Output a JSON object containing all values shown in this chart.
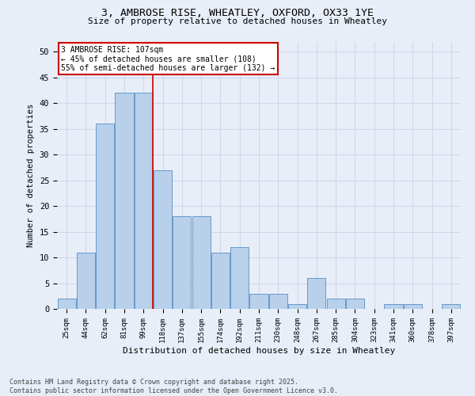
{
  "title_line1": "3, AMBROSE RISE, WHEATLEY, OXFORD, OX33 1YE",
  "title_line2": "Size of property relative to detached houses in Wheatley",
  "xlabel": "Distribution of detached houses by size in Wheatley",
  "ylabel": "Number of detached properties",
  "bar_labels": [
    "25sqm",
    "44sqm",
    "62sqm",
    "81sqm",
    "99sqm",
    "118sqm",
    "137sqm",
    "155sqm",
    "174sqm",
    "192sqm",
    "211sqm",
    "230sqm",
    "248sqm",
    "267sqm",
    "285sqm",
    "304sqm",
    "323sqm",
    "341sqm",
    "360sqm",
    "378sqm",
    "397sqm"
  ],
  "bar_values": [
    2,
    11,
    36,
    42,
    42,
    27,
    18,
    18,
    11,
    12,
    3,
    3,
    1,
    6,
    2,
    2,
    0,
    1,
    1,
    0,
    1
  ],
  "bar_color": "#b8d0ea",
  "bar_edge_color": "#6699cc",
  "grid_color": "#d0d8e8",
  "background_color": "#e8eef8",
  "annotation_text": "3 AMBROSE RISE: 107sqm\n← 45% of detached houses are smaller (108)\n55% of semi-detached houses are larger (132) →",
  "annotation_box_color": "#ffffff",
  "annotation_box_edge": "#cc0000",
  "vline_x": 4.5,
  "vline_color": "#cc0000",
  "ylim": [
    0,
    52
  ],
  "yticks": [
    0,
    5,
    10,
    15,
    20,
    25,
    30,
    35,
    40,
    45,
    50
  ],
  "footnote": "Contains HM Land Registry data © Crown copyright and database right 2025.\nContains public sector information licensed under the Open Government Licence v3.0."
}
